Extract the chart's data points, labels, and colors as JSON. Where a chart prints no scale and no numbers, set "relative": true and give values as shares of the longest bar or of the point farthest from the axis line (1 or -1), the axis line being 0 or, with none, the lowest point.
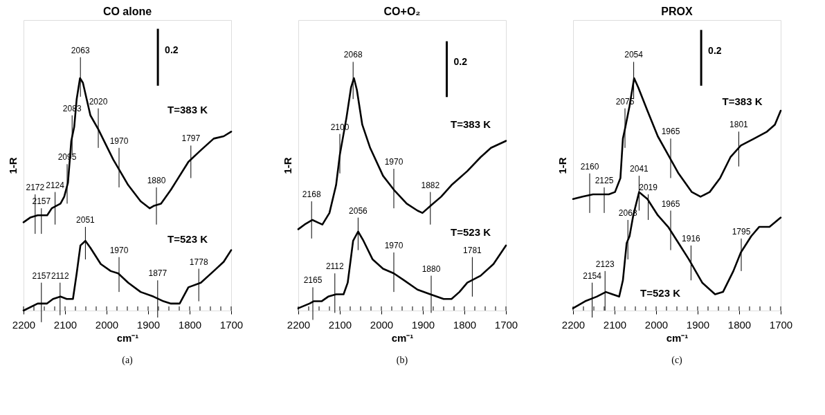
{
  "chart_data": [
    {
      "type": "line",
      "title": "CO alone",
      "xlabel": "cm⁻¹",
      "ylabel": "1-R",
      "relative": true,
      "tick_labels": "x",
      "xlim": [
        2200,
        1700
      ],
      "xticks": [
        2200,
        {
          "value": 2175,
          "label": null
        },
        2100,
        {
          "value": 2150,
          "label": null
        },
        {
          "value": 2125,
          "label": null
        },
        {
          "value": 2075,
          "label": null
        },
        {
          "value": 2050,
          "label": null
        },
        {
          "value": 2025,
          "label": null
        },
        2000,
        {
          "value": 1975,
          "label": null
        },
        {
          "value": 1950,
          "label": null
        },
        {
          "value": 1925,
          "label": null
        },
        1900,
        {
          "value": 1875,
          "label": null
        },
        {
          "value": 1850,
          "label": null
        },
        {
          "value": 1825,
          "label": null
        },
        1800,
        {
          "value": 1775,
          "label": null
        },
        {
          "value": 1750,
          "label": null
        },
        {
          "value": 1725,
          "label": null
        },
        1700
      ],
      "series": [
        {
          "name": "T=383 K",
          "color": "#000000",
          "x": [
            2200,
            2184,
            2166,
            2150,
            2143,
            2132,
            2111,
            2102,
            2093,
            2085,
            2078,
            2072,
            2064,
            2057,
            2048,
            2039,
            2020,
            1984,
            1948,
            1918,
            1896,
            1887,
            1869,
            1845,
            1803,
            1773,
            1742,
            1718,
            1700
          ],
          "values": [
            0.38,
            0.4,
            0.41,
            0.41,
            0.41,
            0.44,
            0.46,
            0.49,
            0.55,
            0.73,
            0.79,
            0.91,
            1.0,
            0.98,
            0.91,
            0.84,
            0.78,
            0.65,
            0.54,
            0.47,
            0.44,
            0.45,
            0.46,
            0.52,
            0.64,
            0.69,
            0.74,
            0.75,
            0.77
          ]
        },
        {
          "name": "T=523 K",
          "color": "#000000",
          "x": [
            2200,
            2166,
            2144,
            2129,
            2111,
            2096,
            2081,
            2072,
            2063,
            2051,
            2039,
            2014,
            1990,
            1972,
            1948,
            1918,
            1887,
            1863,
            1845,
            1824,
            1803,
            1773,
            1742,
            1718,
            1700
          ],
          "values": [
            0.0,
            0.03,
            0.03,
            0.05,
            0.06,
            0.05,
            0.05,
            0.16,
            0.28,
            0.3,
            0.27,
            0.2,
            0.17,
            0.16,
            0.12,
            0.08,
            0.06,
            0.04,
            0.03,
            0.03,
            0.1,
            0.12,
            0.17,
            0.21,
            0.26
          ]
        }
      ],
      "annotations": [
        {
          "text": "2172",
          "x": 2172,
          "y": 0.41
        },
        {
          "text": "2157",
          "x": 2157,
          "y": 0.41
        },
        {
          "text": "2124",
          "x": 2124,
          "y": 0.45
        },
        {
          "text": "2095",
          "x": 2095,
          "y": 0.54
        },
        {
          "text": "2083",
          "x": 2083,
          "y": 0.75
        },
        {
          "text": "2063",
          "x": 2063,
          "y": 1.0
        },
        {
          "text": "2020",
          "x": 2020,
          "y": 0.78
        },
        {
          "text": "1970",
          "x": 1970,
          "y": 0.61
        },
        {
          "text": "1880",
          "x": 1880,
          "y": 0.45
        },
        {
          "text": "1797",
          "x": 1797,
          "y": 0.65
        },
        {
          "text": "2157",
          "x": 2157,
          "y": 0.03
        },
        {
          "text": "2112",
          "x": 2112,
          "y": 0.06
        },
        {
          "text": "2051",
          "x": 2051,
          "y": 0.3
        },
        {
          "text": "1970",
          "x": 1970,
          "y": 0.16
        },
        {
          "text": "1877",
          "x": 1877,
          "y": 0.05
        },
        {
          "text": "1778",
          "x": 1778,
          "y": 0.12
        },
        "0.2",
        "(a)"
      ]
    },
    {
      "type": "line",
      "title": "CO+O₂",
      "xlabel": "cm⁻¹",
      "ylabel": "1-R",
      "relative": true,
      "tick_labels": "x",
      "xlim": [
        2200,
        1700
      ],
      "xticks": [
        2200,
        {
          "value": 2175,
          "label": null
        },
        2100,
        {
          "value": 2150,
          "label": null
        },
        {
          "value": 2125,
          "label": null
        },
        {
          "value": 2075,
          "label": null
        },
        {
          "value": 2050,
          "label": null
        },
        {
          "value": 2025,
          "label": null
        },
        2000,
        {
          "value": 1975,
          "label": null
        },
        {
          "value": 1950,
          "label": null
        },
        {
          "value": 1925,
          "label": null
        },
        1900,
        {
          "value": 1875,
          "label": null
        },
        {
          "value": 1850,
          "label": null
        },
        {
          "value": 1825,
          "label": null
        },
        1800,
        {
          "value": 1775,
          "label": null
        },
        {
          "value": 1750,
          "label": null
        },
        {
          "value": 1725,
          "label": null
        },
        1700
      ],
      "series": [
        {
          "name": "T=383 K",
          "color": "#000000",
          "x": [
            2200,
            2185,
            2166,
            2154,
            2142,
            2125,
            2109,
            2100,
            2084,
            2073,
            2066,
            2059,
            2046,
            2027,
            1996,
            1970,
            1939,
            1913,
            1901,
            1882,
            1856,
            1831,
            1793,
            1761,
            1736,
            1700
          ],
          "values": [
            0.35,
            0.37,
            0.39,
            0.38,
            0.37,
            0.42,
            0.54,
            0.67,
            0.83,
            0.96,
            1.0,
            0.95,
            0.8,
            0.7,
            0.58,
            0.52,
            0.46,
            0.43,
            0.42,
            0.45,
            0.49,
            0.54,
            0.6,
            0.66,
            0.7,
            0.73
          ]
        },
        {
          "name": "T=523 K",
          "color": "#000000",
          "x": [
            2200,
            2173,
            2163,
            2144,
            2128,
            2109,
            2091,
            2081,
            2068,
            2056,
            2043,
            2021,
            1996,
            1970,
            1945,
            1913,
            1882,
            1850,
            1831,
            1812,
            1793,
            1761,
            1730,
            1700
          ],
          "values": [
            0.01,
            0.03,
            0.04,
            0.04,
            0.06,
            0.07,
            0.07,
            0.12,
            0.3,
            0.34,
            0.3,
            0.22,
            0.18,
            0.16,
            0.13,
            0.09,
            0.07,
            0.05,
            0.05,
            0.08,
            0.12,
            0.15,
            0.2,
            0.28
          ]
        }
      ],
      "annotations": [
        {
          "text": "2068",
          "x": 2068,
          "y": 0.99
        },
        {
          "text": "2100",
          "x": 2100,
          "y": 0.67
        },
        {
          "text": "2168",
          "x": 2168,
          "y": 0.39
        },
        {
          "text": "1970",
          "x": 1970,
          "y": 0.52
        },
        {
          "text": "1882",
          "x": 1882,
          "y": 0.45
        },
        {
          "text": "2056",
          "x": 2056,
          "y": 0.34
        },
        {
          "text": "2112",
          "x": 2112,
          "y": 0.07
        },
        {
          "text": "2165",
          "x": 2165,
          "y": 0.04
        },
        {
          "text": "1970",
          "x": 1970,
          "y": 0.16
        },
        {
          "text": "1880",
          "x": 1880,
          "y": 0.07
        },
        {
          "text": "1781",
          "x": 1781,
          "y": 0.14
        },
        "0.2",
        "(b)"
      ]
    },
    {
      "type": "line",
      "title": "PROX",
      "xlabel": "cm⁻¹",
      "ylabel": "1-R",
      "relative": true,
      "tick_labels": "x",
      "xlim": [
        2200,
        1700
      ],
      "xticks": [
        2200,
        {
          "value": 2175,
          "label": null
        },
        2100,
        {
          "value": 2150,
          "label": null
        },
        {
          "value": 2125,
          "label": null
        },
        {
          "value": 2075,
          "label": null
        },
        {
          "value": 2050,
          "label": null
        },
        {
          "value": 2025,
          "label": null
        },
        2000,
        {
          "value": 1975,
          "label": null
        },
        {
          "value": 1950,
          "label": null
        },
        {
          "value": 1925,
          "label": null
        },
        1900,
        {
          "value": 1875,
          "label": null
        },
        {
          "value": 1850,
          "label": null
        },
        {
          "value": 1825,
          "label": null
        },
        1800,
        {
          "value": 1775,
          "label": null
        },
        {
          "value": 1750,
          "label": null
        },
        {
          "value": 1725,
          "label": null
        },
        1700
      ],
      "series": [
        {
          "name": "T=383 K",
          "color": "#000000",
          "x": [
            2200,
            2177,
            2152,
            2133,
            2114,
            2099,
            2086,
            2080,
            2074,
            2064,
            2053,
            2043,
            2021,
            1996,
            1971,
            1946,
            1914,
            1893,
            1871,
            1846,
            1821,
            1796,
            1764,
            1733,
            1714,
            1700
          ],
          "values": [
            0.48,
            0.49,
            0.5,
            0.5,
            0.5,
            0.51,
            0.57,
            0.74,
            0.79,
            0.88,
            1.0,
            0.96,
            0.86,
            0.75,
            0.67,
            0.59,
            0.51,
            0.49,
            0.51,
            0.57,
            0.66,
            0.71,
            0.74,
            0.77,
            0.8,
            0.86
          ]
        },
        {
          "name": "T=523 K",
          "color": "#000000",
          "x": [
            2200,
            2171,
            2143,
            2121,
            2105,
            2089,
            2080,
            2071,
            2064,
            2055,
            2041,
            2021,
            1996,
            1971,
            1946,
            1921,
            1889,
            1858,
            1839,
            1814,
            1796,
            1771,
            1752,
            1727,
            1700
          ],
          "values": [
            0.01,
            0.04,
            0.06,
            0.08,
            0.07,
            0.06,
            0.13,
            0.29,
            0.32,
            0.41,
            0.51,
            0.48,
            0.41,
            0.36,
            0.29,
            0.22,
            0.12,
            0.07,
            0.08,
            0.17,
            0.25,
            0.32,
            0.36,
            0.36,
            0.4
          ]
        }
      ],
      "annotations": [
        {
          "text": "2054",
          "x": 2054,
          "y": 0.99
        },
        {
          "text": "2075",
          "x": 2075,
          "y": 0.78
        },
        {
          "text": "2160",
          "x": 2160,
          "y": 0.5
        },
        {
          "text": "2125",
          "x": 2125,
          "y": 0.5
        },
        {
          "text": "1965",
          "x": 1965,
          "y": 0.65
        },
        {
          "text": "1801",
          "x": 1801,
          "y": 0.7
        },
        {
          "text": "2041",
          "x": 2041,
          "y": 0.51
        },
        {
          "text": "2019",
          "x": 2019,
          "y": 0.47
        },
        {
          "text": "2068",
          "x": 2068,
          "y": 0.3
        },
        {
          "text": "1965",
          "x": 1965,
          "y": 0.34
        },
        {
          "text": "1916",
          "x": 1916,
          "y": 0.21
        },
        {
          "text": "1795",
          "x": 1795,
          "y": 0.25
        },
        {
          "text": "2123",
          "x": 2123,
          "y": 0.08
        },
        {
          "text": "2154",
          "x": 2154,
          "y": 0.05
        },
        "0.2",
        "(c)"
      ]
    }
  ]
}
